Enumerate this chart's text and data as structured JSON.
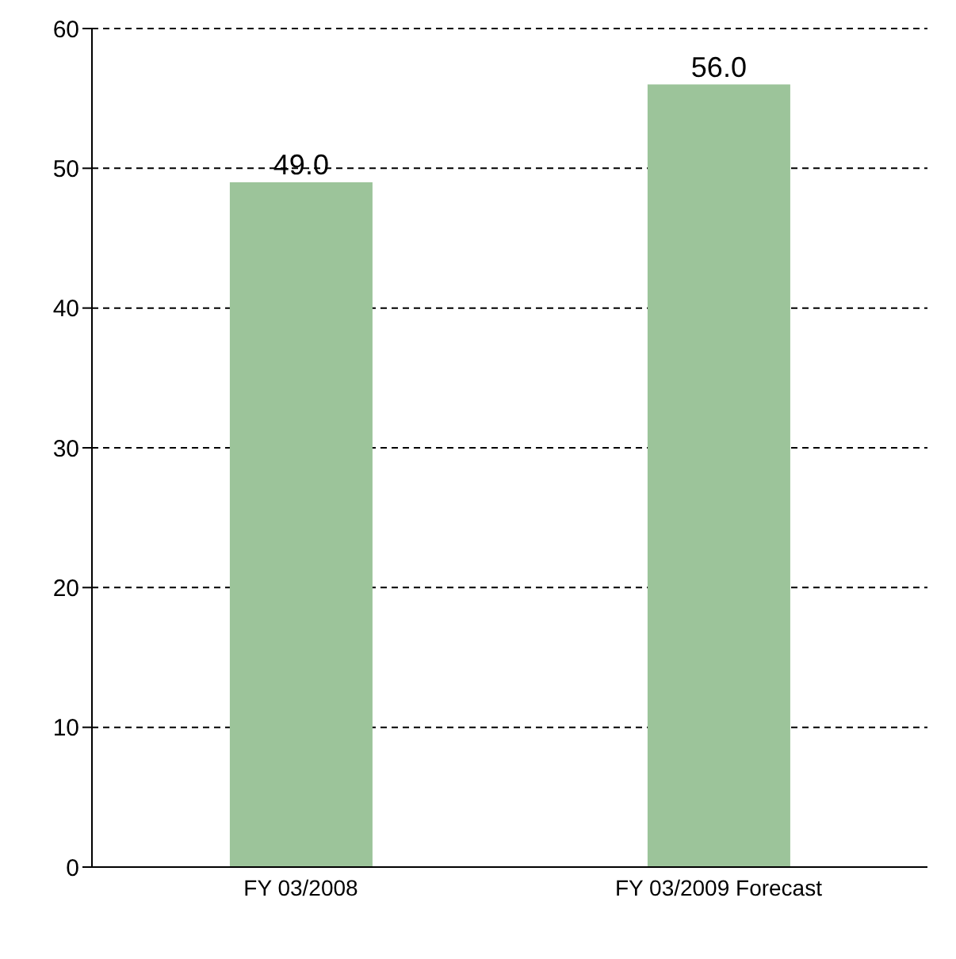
{
  "chart_data": {
    "type": "bar",
    "categories": [
      "FY 03/2008",
      "FY 03/2009 Forecast"
    ],
    "values": [
      49.0,
      56.0
    ],
    "value_labels": [
      "49.0",
      "56.0"
    ],
    "color": "#9cc49a",
    "ylim": [
      0,
      60
    ],
    "yticks": [
      0,
      10,
      20,
      30,
      40,
      50,
      60
    ],
    "grid": "y",
    "legend": false
  }
}
